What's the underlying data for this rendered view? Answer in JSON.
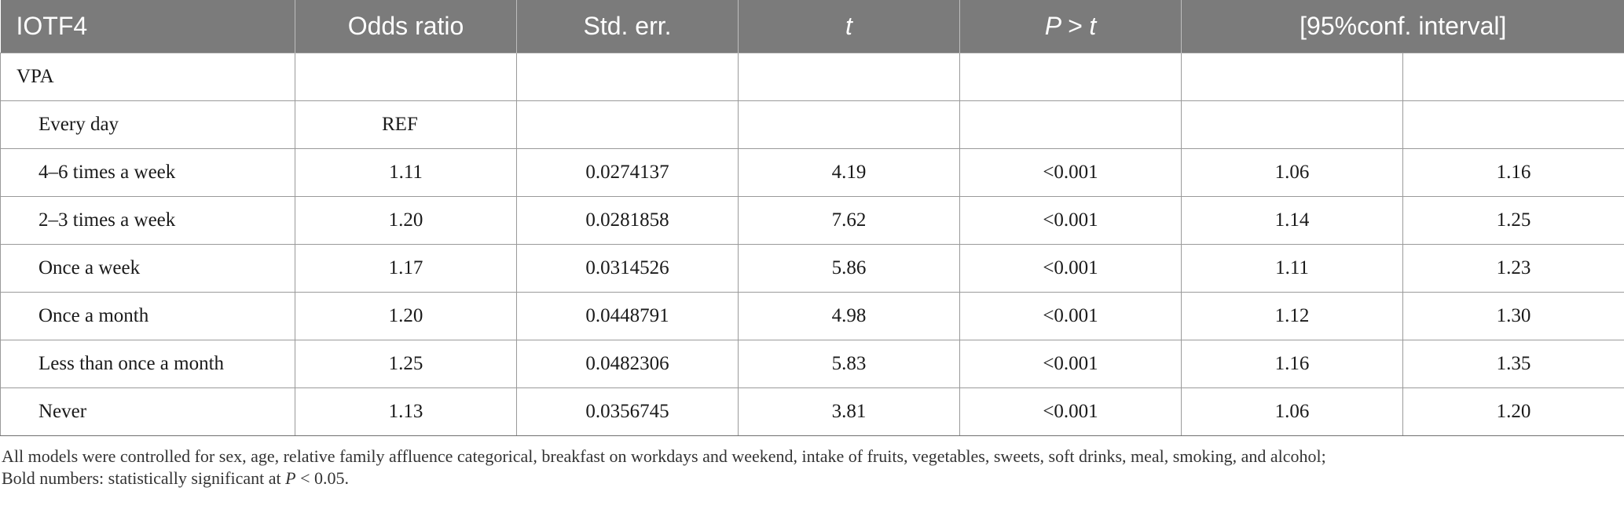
{
  "table": {
    "headers": [
      "IOTF4",
      "Odds ratio",
      "Std. err.",
      "t",
      "P > t",
      "[95%conf. interval]"
    ],
    "group_label": "VPA",
    "rows": [
      {
        "label": "Every day",
        "odds_ratio": "REF",
        "std_err": "",
        "t": "",
        "p": "",
        "ci_low": "",
        "ci_high": ""
      },
      {
        "label": "4–6 times a week",
        "odds_ratio": "1.11",
        "std_err": "0.0274137",
        "t": "4.19",
        "p": "<0.001",
        "ci_low": "1.06",
        "ci_high": "1.16"
      },
      {
        "label": "2–3 times a week",
        "odds_ratio": "1.20",
        "std_err": "0.0281858",
        "t": "7.62",
        "p": "<0.001",
        "ci_low": "1.14",
        "ci_high": "1.25"
      },
      {
        "label": "Once a week",
        "odds_ratio": "1.17",
        "std_err": "0.0314526",
        "t": "5.86",
        "p": "<0.001",
        "ci_low": "1.11",
        "ci_high": "1.23"
      },
      {
        "label": "Once a month",
        "odds_ratio": "1.20",
        "std_err": "0.0448791",
        "t": "4.98",
        "p": "<0.001",
        "ci_low": "1.12",
        "ci_high": "1.30"
      },
      {
        "label": "Less than once a month",
        "odds_ratio": "1.25",
        "std_err": "0.0482306",
        "t": "5.83",
        "p": "<0.001",
        "ci_low": "1.16",
        "ci_high": "1.35"
      },
      {
        "label": "Never",
        "odds_ratio": "1.13",
        "std_err": "0.0356745",
        "t": "3.81",
        "p": "<0.001",
        "ci_low": "1.06",
        "ci_high": "1.20"
      }
    ]
  },
  "footnote": {
    "line1": "All models were controlled for sex, age, relative family affluence categorical, breakfast on workdays and weekend, intake of fruits, vegetables, sweets, soft drinks, meal, smoking, and alcohol;",
    "line2_prefix": "Bold numbers: statistically significant at ",
    "line2_var": "P",
    "line2_suffix": " < 0.05."
  },
  "colors": {
    "header_bg": "#7b7b7b",
    "header_text": "#ffffff",
    "grid": "#9a9a9a"
  }
}
